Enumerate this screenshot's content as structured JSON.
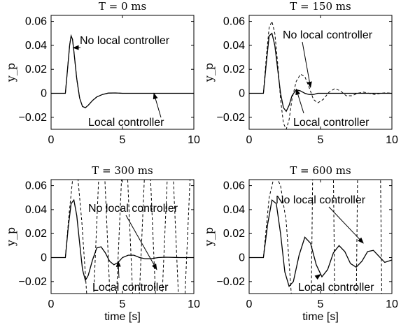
{
  "chart_data": [
    {
      "type": "line",
      "title": "T = 0 ms",
      "ylabel": "y_p",
      "xlabel": "",
      "xlim": [
        0,
        10
      ],
      "ylim": [
        -0.03,
        0.065
      ],
      "xticks": [
        "0",
        "5",
        "10"
      ],
      "yticks": [
        "0.06",
        "0.04",
        "0.02",
        "0",
        "−0.02"
      ],
      "series": [
        {
          "name": "No local controller",
          "style": "dashed",
          "x": [
            0,
            1.0,
            1.15,
            1.3,
            1.4,
            1.5,
            1.6,
            1.8,
            2.0,
            2.2,
            2.4,
            2.6,
            2.9,
            3.2,
            3.6,
            4.0,
            4.5,
            5.0,
            6.0,
            8.0,
            10.0
          ],
          "y": [
            0,
            0,
            0.02,
            0.04,
            0.048,
            0.045,
            0.035,
            0.012,
            -0.004,
            -0.011,
            -0.012,
            -0.01,
            -0.006,
            -0.003,
            -0.001,
            0.0002,
            0.0003,
            0,
            0,
            0,
            0
          ]
        },
        {
          "name": "Local controller",
          "style": "solid",
          "x": [
            0,
            1.0,
            1.15,
            1.3,
            1.4,
            1.5,
            1.6,
            1.8,
            2.0,
            2.2,
            2.4,
            2.6,
            2.9,
            3.2,
            3.6,
            4.0,
            4.5,
            5.0,
            6.0,
            8.0,
            10.0
          ],
          "y": [
            0,
            0,
            0.02,
            0.04,
            0.048,
            0.045,
            0.035,
            0.012,
            -0.004,
            -0.011,
            -0.012,
            -0.01,
            -0.006,
            -0.003,
            -0.001,
            0.0002,
            0.0003,
            0,
            0,
            0,
            0
          ]
        }
      ],
      "annotations": [
        "No local controller",
        "Local controller"
      ]
    },
    {
      "type": "line",
      "title": "T = 150 ms",
      "ylabel": "y_p",
      "xlabel": "",
      "xlim": [
        0,
        10
      ],
      "ylim": [
        -0.03,
        0.065
      ],
      "xticks": [
        "0",
        "5",
        "10"
      ],
      "yticks": [
        "0.06",
        "0.04",
        "0.02",
        "0",
        "−0.02"
      ],
      "series": [
        {
          "name": "No local controller",
          "style": "dashed",
          "x": [
            0,
            1.0,
            1.2,
            1.4,
            1.6,
            1.8,
            2.0,
            2.2,
            2.4,
            2.6,
            2.8,
            3.0,
            3.3,
            3.6,
            3.9,
            4.2,
            4.5,
            4.8,
            5.2,
            5.6,
            6.0,
            6.4,
            6.8,
            7.2,
            7.6,
            8.0,
            8.4,
            8.8,
            9.2,
            9.6,
            10.0
          ],
          "y": [
            0,
            0,
            0.03,
            0.055,
            0.06,
            0.05,
            0.025,
            -0.005,
            -0.025,
            -0.03,
            -0.022,
            -0.005,
            0.01,
            0.016,
            0.014,
            0.005,
            -0.005,
            -0.008,
            -0.005,
            0.001,
            0.004,
            0.002,
            -0.002,
            -0.002,
            0,
            0.001,
            0,
            -0.001,
            0,
            0.0005,
            0
          ]
        },
        {
          "name": "Local controller",
          "style": "solid",
          "x": [
            0,
            1.0,
            1.2,
            1.4,
            1.6,
            1.8,
            2.0,
            2.2,
            2.4,
            2.6,
            2.8,
            3.0,
            3.3,
            3.6,
            3.9,
            4.2,
            4.5,
            4.8,
            5.2,
            5.6,
            6.0,
            7.0,
            8.0,
            9.0,
            10.0
          ],
          "y": [
            0,
            0,
            0.025,
            0.048,
            0.05,
            0.04,
            0.02,
            0.0,
            -0.012,
            -0.015,
            -0.01,
            -0.002,
            0.003,
            0.002,
            0.0,
            -0.001,
            -0.001,
            0,
            0,
            0,
            0,
            0,
            0,
            0,
            0
          ]
        }
      ],
      "annotations": [
        "No local controller",
        "Local controller"
      ]
    },
    {
      "type": "line",
      "title": "T = 300 ms",
      "ylabel": "y_p",
      "xlabel": "time [s]",
      "xlim": [
        0,
        10
      ],
      "ylim": [
        -0.03,
        0.065
      ],
      "xticks": [
        "0",
        "5",
        "10"
      ],
      "yticks": [
        "0.06",
        "0.04",
        "0.02",
        "0",
        "−0.02"
      ],
      "series": [
        {
          "name": "No local controller",
          "style": "dashed",
          "x": [
            0,
            1.0,
            1.25,
            1.55,
            1.85,
            2.15,
            2.55,
            2.95,
            3.35,
            3.75,
            4.15,
            4.55,
            4.95,
            5.35,
            5.75,
            6.15,
            6.55,
            6.95,
            7.35,
            7.75,
            8.15,
            8.55,
            8.95,
            9.35,
            9.75,
            10.0
          ],
          "y": [
            0,
            0,
            0.035,
            0.07,
            0.07,
            0.03,
            -0.04,
            -0.04,
            0.07,
            0.07,
            -0.04,
            -0.04,
            0.07,
            0.07,
            -0.04,
            -0.04,
            0.07,
            0.07,
            -0.04,
            -0.04,
            0.07,
            0.07,
            -0.04,
            -0.04,
            0.07,
            0.07
          ]
        },
        {
          "name": "Local controller",
          "style": "solid",
          "x": [
            0,
            1.0,
            1.2,
            1.4,
            1.6,
            1.8,
            2.0,
            2.2,
            2.4,
            2.6,
            2.9,
            3.2,
            3.5,
            3.8,
            4.1,
            4.4,
            4.7,
            5.0,
            5.4,
            5.8,
            6.2,
            6.6,
            7.0,
            7.5,
            8.0,
            9.0,
            10.0
          ],
          "y": [
            0,
            0,
            0.025,
            0.045,
            0.048,
            0.035,
            0.012,
            -0.01,
            -0.019,
            -0.015,
            -0.002,
            0.008,
            0.009,
            0.004,
            -0.003,
            -0.006,
            -0.004,
            0.0,
            0.002,
            0.002,
            0.0,
            -0.001,
            -0.001,
            0,
            0.0003,
            0,
            0
          ]
        }
      ],
      "annotations": [
        "No local controller",
        "Local controller"
      ]
    },
    {
      "type": "line",
      "title": "T = 600 ms",
      "ylabel": "y_p",
      "xlabel": "time [s]",
      "xlim": [
        0,
        10
      ],
      "ylim": [
        -0.03,
        0.065
      ],
      "xticks": [
        "0",
        "5",
        "10"
      ],
      "yticks": [
        "0.06",
        "0.04",
        "0.02",
        "0",
        "−0.02"
      ],
      "series": [
        {
          "name": "No local controller",
          "style": "dashed",
          "x": [
            0,
            1.0,
            1.4,
            1.8,
            2.2,
            2.6,
            2.95,
            3.05,
            4.35,
            4.45,
            4.55,
            5.9,
            6.0,
            6.1,
            7.5,
            7.6,
            7.7,
            9.2,
            9.3,
            9.4,
            10.0
          ],
          "y": [
            0,
            0,
            0.05,
            0.07,
            0.06,
            0.03,
            -0.03,
            -0.04,
            -0.04,
            0.07,
            0.07,
            0.07,
            -0.04,
            -0.04,
            -0.04,
            0.07,
            0.07,
            0.07,
            -0.04,
            -0.04,
            -0.04
          ]
        },
        {
          "name": "Local controller",
          "style": "solid",
          "x": [
            0,
            1.0,
            1.3,
            1.6,
            1.9,
            2.2,
            2.5,
            2.8,
            3.1,
            3.5,
            3.9,
            4.3,
            4.7,
            5.1,
            5.5,
            5.9,
            6.3,
            6.7,
            7.1,
            7.5,
            7.9,
            8.3,
            8.7,
            9.1,
            9.5,
            10.0
          ],
          "y": [
            0,
            0,
            0.028,
            0.048,
            0.045,
            0.02,
            -0.012,
            -0.024,
            -0.02,
            0.002,
            0.017,
            0.012,
            -0.006,
            -0.016,
            -0.01,
            0.004,
            0.01,
            0.005,
            -0.005,
            -0.008,
            -0.003,
            0.005,
            0.006,
            0.001,
            -0.004,
            -0.002
          ]
        }
      ],
      "annotations": [
        "No local controller",
        "Local controller"
      ]
    }
  ]
}
